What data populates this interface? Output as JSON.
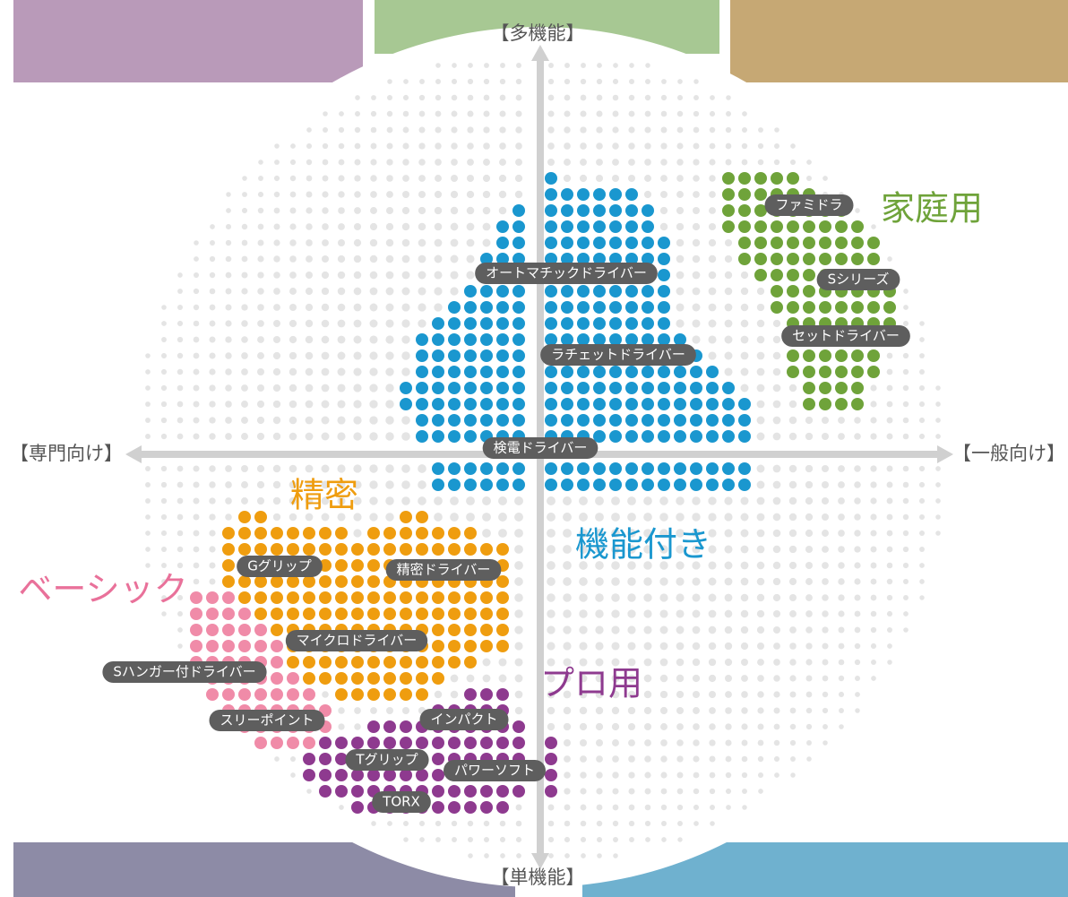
{
  "axes": {
    "top": "【多機能】",
    "bottom": "【単機能】",
    "left": "【専門向け】",
    "right": "【一般向け】"
  },
  "categories": [
    "家庭用",
    "精密",
    "機能付き",
    "ベーシック",
    "プロ用"
  ],
  "products": [
    "オートマチックドライバー",
    "ラチェットドライバー",
    "検電ドライバー",
    "ファミドラ",
    "Sシリーズ",
    "セットドライバー",
    "Gグリップ",
    "精密ドライバー",
    "マイクロドライバー",
    "Sハンガー付ドライバー",
    "スリーポイント",
    "インパクト",
    "Tグリップ",
    "パワーソフト",
    "TORX"
  ]
}
